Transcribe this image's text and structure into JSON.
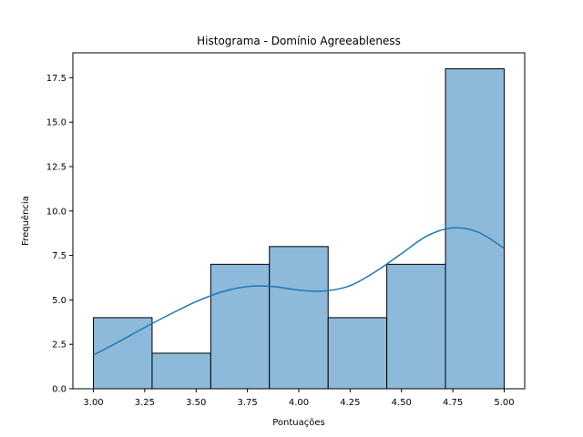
{
  "chart_data": {
    "type": "bar",
    "title": "Histograma - Domínio Agreeableness",
    "xlabel": "Pontuações",
    "ylabel": "Frequência",
    "xlim": [
      2.9,
      5.1
    ],
    "ylim": [
      0,
      18.9
    ],
    "xticks": [
      "3.00",
      "3.25",
      "3.50",
      "3.75",
      "4.00",
      "4.25",
      "4.50",
      "4.75",
      "5.00"
    ],
    "yticks": [
      "0.0",
      "2.5",
      "5.0",
      "7.5",
      "10.0",
      "12.5",
      "15.0",
      "17.5"
    ],
    "bins": [
      {
        "x0": 3.0,
        "x1": 3.2857,
        "count": 4
      },
      {
        "x0": 3.2857,
        "x1": 3.5714,
        "count": 2
      },
      {
        "x0": 3.5714,
        "x1": 3.8571,
        "count": 7
      },
      {
        "x0": 3.8571,
        "x1": 4.1429,
        "count": 8
      },
      {
        "x0": 4.1429,
        "x1": 4.4286,
        "count": 4
      },
      {
        "x0": 4.4286,
        "x1": 4.7143,
        "count": 7
      },
      {
        "x0": 4.7143,
        "x1": 5.0,
        "count": 18
      }
    ],
    "kde": {
      "x": [
        3.0,
        3.125,
        3.25,
        3.375,
        3.5,
        3.625,
        3.75,
        3.875,
        4.0,
        4.125,
        4.25,
        4.375,
        4.5,
        4.625,
        4.75,
        4.875,
        5.0
      ],
      "y": [
        1.9,
        2.65,
        3.45,
        4.2,
        4.9,
        5.45,
        5.75,
        5.75,
        5.55,
        5.5,
        5.8,
        6.6,
        7.6,
        8.6,
        9.05,
        8.8,
        7.9
      ]
    },
    "colors": {
      "bar_fill": "#8db9db",
      "bar_edge": "#000000",
      "kde_line": "#1f77b4"
    },
    "grid": false,
    "legend": "none"
  }
}
